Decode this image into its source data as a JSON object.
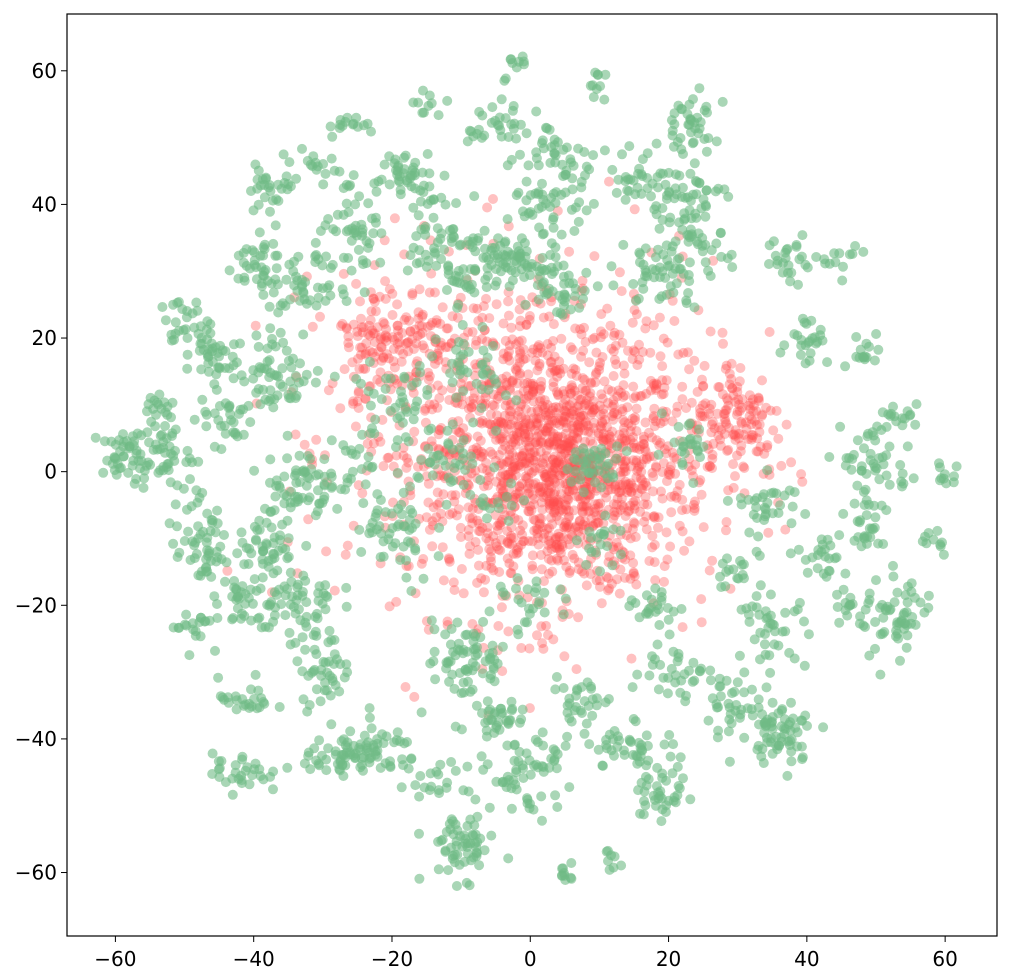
{
  "chart_data": {
    "type": "scatter",
    "title": "",
    "xlabel": "",
    "ylabel": "",
    "xlim": [
      -67,
      67.5
    ],
    "ylim": [
      -69.5,
      68.5
    ],
    "grid": false,
    "legend": "none",
    "x_ticks": [
      {
        "value": -60,
        "label": "−60"
      },
      {
        "value": -40,
        "label": "−40"
      },
      {
        "value": -20,
        "label": "−20"
      },
      {
        "value": 0,
        "label": "0"
      },
      {
        "value": 20,
        "label": "20"
      },
      {
        "value": 40,
        "label": "40"
      },
      {
        "value": 60,
        "label": "60"
      }
    ],
    "y_ticks": [
      {
        "value": -60,
        "label": "−60"
      },
      {
        "value": -40,
        "label": "−40"
      },
      {
        "value": -20,
        "label": "−20"
      },
      {
        "value": 0,
        "label": "0"
      },
      {
        "value": 20,
        "label": "20"
      },
      {
        "value": 40,
        "label": "40"
      },
      {
        "value": 60,
        "label": "60"
      }
    ],
    "series": [
      {
        "color": "#ff4d4d",
        "point_alpha": 0.35,
        "core_clusters": [
          {
            "cx": 5,
            "cy": 0,
            "sx": 16,
            "sy": 16,
            "n": 900
          },
          {
            "cx": 0,
            "cy": 5,
            "sx": 24,
            "sy": 24,
            "n": 800
          },
          {
            "cx": 30,
            "cy": 8,
            "sx": 6,
            "sy": 8,
            "n": 120
          },
          {
            "cx": -20,
            "cy": 20,
            "sx": 9,
            "sy": 8,
            "n": 160
          }
        ]
      },
      {
        "color": "#6fba86",
        "point_alpha": 0.6,
        "clusters": [
          [
            -58,
            2,
            2.0,
            2.0,
            45
          ],
          [
            -54,
            10,
            1.2,
            1.0,
            15
          ],
          [
            -53,
            3,
            2.0,
            2.5,
            40
          ],
          [
            -50,
            22,
            1.8,
            2.0,
            30
          ],
          [
            -48,
            -8,
            2.0,
            3.0,
            35
          ],
          [
            -47,
            -13,
            2.0,
            2.0,
            25
          ],
          [
            -49,
            -23,
            1.5,
            1.5,
            20
          ],
          [
            -46,
            17,
            1.8,
            1.8,
            35
          ],
          [
            -44,
            8,
            2.0,
            2.0,
            30
          ],
          [
            -40,
            31,
            2.0,
            2.5,
            35
          ],
          [
            -42,
            -20,
            2.0,
            2.0,
            30
          ],
          [
            -41,
            -34,
            2.0,
            1.5,
            25
          ],
          [
            -42,
            -45,
            2.0,
            1.5,
            30
          ],
          [
            -38,
            -11,
            2.0,
            2.5,
            45
          ],
          [
            -37,
            43,
            2.0,
            2.0,
            30
          ],
          [
            -36,
            15,
            3.0,
            3.0,
            60
          ],
          [
            -34,
            -2,
            2.5,
            3.0,
            60
          ],
          [
            -34,
            -20,
            3.0,
            3.0,
            60
          ],
          [
            -33,
            27,
            2.5,
            2.5,
            40
          ],
          [
            -30,
            -30,
            2.0,
            2.5,
            40
          ],
          [
            -30,
            45,
            1.5,
            1.5,
            15
          ],
          [
            -28,
            -43,
            2.5,
            1.5,
            40
          ],
          [
            -26,
            52,
            2.0,
            0.8,
            15
          ],
          [
            -25,
            35,
            3.0,
            3.0,
            55
          ],
          [
            -22,
            -42,
            3.0,
            2.0,
            50
          ],
          [
            -20,
            -10,
            3.0,
            4.0,
            50
          ],
          [
            -20,
            10,
            3.0,
            3.0,
            40
          ],
          [
            -18,
            45,
            3.0,
            2.0,
            45
          ],
          [
            -15,
            55,
            1.0,
            0.8,
            10
          ],
          [
            -14,
            36,
            2.5,
            2.5,
            40
          ],
          [
            -13,
            -47,
            2.0,
            1.5,
            20
          ],
          [
            -12,
            2,
            3.0,
            3.0,
            40
          ],
          [
            -10,
            -56,
            2.5,
            2.5,
            60
          ],
          [
            -9,
            30,
            3.0,
            3.0,
            50
          ],
          [
            -9,
            -28,
            3.0,
            3.0,
            70
          ],
          [
            -8,
            15,
            2.5,
            3.0,
            40
          ],
          [
            -6,
            -37,
            2.5,
            2.0,
            35
          ],
          [
            -4,
            52,
            2.5,
            2.5,
            35
          ],
          [
            -2,
            31,
            3.0,
            2.5,
            70
          ],
          [
            -2,
            61,
            0.6,
            0.6,
            8
          ],
          [
            0,
            -45,
            3.0,
            3.0,
            60
          ],
          [
            0,
            -20,
            2.0,
            2.0,
            25
          ],
          [
            3,
            40,
            3.0,
            2.0,
            45
          ],
          [
            5,
            -60,
            1.0,
            0.8,
            10
          ],
          [
            5,
            48,
            3.0,
            2.0,
            35
          ],
          [
            5,
            27,
            2.0,
            2.0,
            30
          ],
          [
            8,
            -35,
            2.0,
            2.0,
            30
          ],
          [
            9,
            1,
            2.0,
            1.5,
            40
          ],
          [
            10,
            58,
            1.0,
            1.0,
            10
          ],
          [
            12,
            -58,
            1.0,
            1.0,
            8
          ],
          [
            15,
            -41,
            3.0,
            2.0,
            45
          ],
          [
            16,
            44,
            2.0,
            2.0,
            30
          ],
          [
            18,
            -20,
            2.0,
            2.0,
            25
          ],
          [
            19,
            -49,
            2.0,
            2.0,
            35
          ],
          [
            19,
            30,
            3.0,
            2.5,
            50
          ],
          [
            20,
            -30,
            2.5,
            2.0,
            30
          ],
          [
            22,
            40,
            3.0,
            3.0,
            55
          ],
          [
            23,
            52,
            2.0,
            2.5,
            40
          ],
          [
            22,
            3,
            2.0,
            2.0,
            25
          ],
          [
            25,
            33,
            2.0,
            2.0,
            25
          ],
          [
            28,
            -35,
            2.0,
            2.0,
            30
          ],
          [
            30,
            -15,
            2.0,
            2.0,
            20
          ],
          [
            34,
            -5,
            2.5,
            2.5,
            30
          ],
          [
            35,
            -24,
            2.5,
            2.5,
            40
          ],
          [
            36,
            -39,
            3.0,
            2.5,
            70
          ],
          [
            38,
            32,
            2.0,
            2.0,
            25
          ],
          [
            40,
            20,
            1.5,
            2.0,
            25
          ],
          [
            42,
            -12,
            2.0,
            2.0,
            25
          ],
          [
            45,
            32,
            1.5,
            1.0,
            12
          ],
          [
            46,
            -20,
            1.0,
            1.5,
            12
          ],
          [
            48,
            18,
            1.5,
            1.5,
            15
          ],
          [
            49,
            -7,
            2.0,
            3.0,
            35
          ],
          [
            50,
            2,
            2.5,
            3.0,
            40
          ],
          [
            53,
            -22,
            3.0,
            3.0,
            60
          ],
          [
            54,
            8,
            1.0,
            1.0,
            15
          ],
          [
            58,
            -10,
            1.0,
            1.0,
            10
          ],
          [
            60,
            0,
            1.0,
            1.0,
            10
          ],
          [
            -26,
            0,
            2.5,
            2.5,
            25
          ],
          [
            10,
            -10,
            2.0,
            2.0,
            20
          ],
          [
            -5,
            -5,
            2.0,
            2.0,
            15
          ]
        ]
      }
    ]
  }
}
